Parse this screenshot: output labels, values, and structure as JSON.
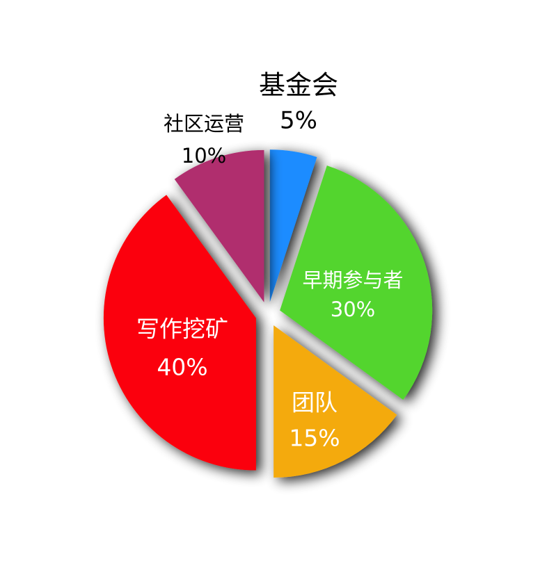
{
  "chart_data": {
    "type": "pie",
    "exploded": true,
    "series": [
      {
        "slices": [
          {
            "label": "基金会",
            "value": 5,
            "percent_label": "5%",
            "color": "#1a8cff",
            "label_color": "#000000",
            "label_outside": true
          },
          {
            "label": "早期参与者",
            "value": 30,
            "percent_label": "30%",
            "color": "#52d52e",
            "label_color": "#ffffff",
            "label_outside": false
          },
          {
            "label": "团队",
            "value": 15,
            "percent_label": "15%",
            "color": "#f4aa0e",
            "label_color": "#ffffff",
            "label_outside": false
          },
          {
            "label": "写作挖矿",
            "value": 40,
            "percent_label": "40%",
            "color": "#fb0007",
            "label_color": "#ffffff",
            "label_outside": false
          },
          {
            "label": "社区运营",
            "value": 10,
            "percent_label": "10%",
            "color": "#b02f6e",
            "label_color": "#000000",
            "label_outside": true
          }
        ]
      }
    ],
    "start_angle": "12 o'clock",
    "direction": "clockwise"
  }
}
